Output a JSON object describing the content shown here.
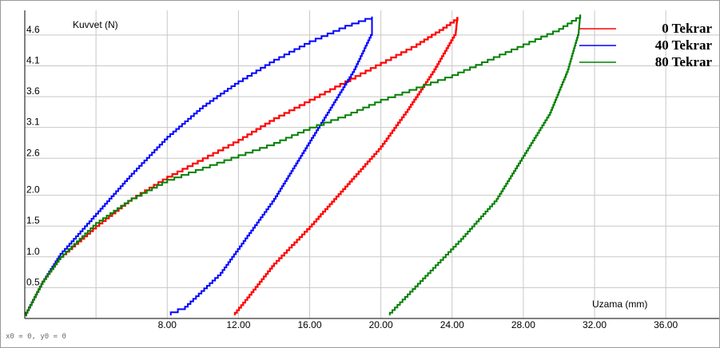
{
  "status_text": "x0 = 0, y0 = 0",
  "chart_data": {
    "type": "line",
    "xlabel": "Uzama (mm)",
    "ylabel": "Kuvvet (N)",
    "xlim": [
      0,
      39
    ],
    "ylim": [
      0,
      5.0
    ],
    "x_ticks": [
      "8.00",
      "12.00",
      "16.00",
      "20.00",
      "24.00",
      "28.00",
      "32.00",
      "36.00"
    ],
    "y_ticks": [
      "0.5",
      "1.0",
      "1.5",
      "2.0",
      "2.6",
      "3.1",
      "3.6",
      "4.1",
      "4.6"
    ],
    "grid": true,
    "legend_position": "top-right",
    "series": [
      {
        "name": "0 Tekrar",
        "color": "#ff0000",
        "points": [
          [
            0,
            0.05
          ],
          [
            1,
            0.6
          ],
          [
            2,
            1.0
          ],
          [
            4,
            1.5
          ],
          [
            6,
            1.95
          ],
          [
            8,
            2.3
          ],
          [
            10,
            2.6
          ],
          [
            12,
            2.9
          ],
          [
            14,
            3.25
          ],
          [
            16,
            3.55
          ],
          [
            18,
            3.85
          ],
          [
            20,
            4.15
          ],
          [
            22,
            4.45
          ],
          [
            23.5,
            4.72
          ],
          [
            24.3,
            4.88
          ],
          [
            24.2,
            4.6
          ],
          [
            23,
            4.0
          ],
          [
            21.5,
            3.35
          ],
          [
            20,
            2.75
          ],
          [
            18,
            2.1
          ],
          [
            16,
            1.45
          ],
          [
            14,
            0.85
          ],
          [
            12.5,
            0.3
          ],
          [
            11.8,
            0.05
          ]
        ]
      },
      {
        "name": "40 Tekrar",
        "color": "#0000ff",
        "points": [
          [
            0,
            0.05
          ],
          [
            1,
            0.6
          ],
          [
            2,
            1.05
          ],
          [
            4,
            1.7
          ],
          [
            6,
            2.35
          ],
          [
            8,
            2.95
          ],
          [
            10,
            3.45
          ],
          [
            12,
            3.85
          ],
          [
            14,
            4.2
          ],
          [
            16,
            4.5
          ],
          [
            18,
            4.75
          ],
          [
            19.5,
            4.9
          ],
          [
            19.5,
            4.6
          ],
          [
            18.5,
            4.0
          ],
          [
            17,
            3.3
          ],
          [
            15.5,
            2.6
          ],
          [
            14,
            1.9
          ],
          [
            12.5,
            1.3
          ],
          [
            11,
            0.7
          ],
          [
            9,
            0.15
          ],
          [
            8.2,
            0.05
          ]
        ]
      },
      {
        "name": "80 Tekrar",
        "color": "#008000",
        "points": [
          [
            0,
            0.05
          ],
          [
            1,
            0.6
          ],
          [
            2,
            1.0
          ],
          [
            4,
            1.55
          ],
          [
            6,
            1.95
          ],
          [
            8,
            2.25
          ],
          [
            10,
            2.45
          ],
          [
            12,
            2.65
          ],
          [
            14,
            2.85
          ],
          [
            16,
            3.1
          ],
          [
            18,
            3.3
          ],
          [
            20,
            3.55
          ],
          [
            22,
            3.75
          ],
          [
            24,
            3.95
          ],
          [
            26,
            4.2
          ],
          [
            28,
            4.45
          ],
          [
            30,
            4.7
          ],
          [
            31.2,
            4.92
          ],
          [
            31.1,
            4.6
          ],
          [
            30.5,
            4.0
          ],
          [
            29.5,
            3.3
          ],
          [
            28,
            2.6
          ],
          [
            26.5,
            1.9
          ],
          [
            24.5,
            1.25
          ],
          [
            22.5,
            0.65
          ],
          [
            20.5,
            0.05
          ]
        ]
      }
    ]
  }
}
